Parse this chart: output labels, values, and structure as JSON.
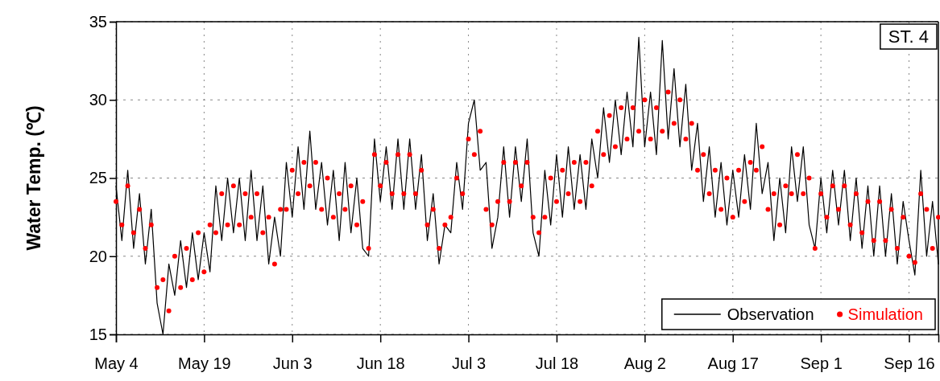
{
  "chart_data": {
    "type": "line",
    "ylabel": "Water Temp. (℃)",
    "annotations": [
      "ST. 4"
    ],
    "x": [
      "--05-04",
      "--05-05",
      "--05-06",
      "--05-07",
      "--05-08",
      "--05-09",
      "--05-10",
      "--05-11",
      "--05-12",
      "--05-13",
      "--05-14",
      "--05-15",
      "--05-16",
      "--05-17",
      "--05-18",
      "--05-19",
      "--05-20",
      "--05-21",
      "--05-22",
      "--05-23",
      "--05-24",
      "--05-25",
      "--05-26",
      "--05-27",
      "--05-28",
      "--05-29",
      "--05-30",
      "--05-31",
      "--06-01",
      "--06-02",
      "--06-03",
      "--06-04",
      "--06-05",
      "--06-06",
      "--06-07",
      "--06-08",
      "--06-09",
      "--06-10",
      "--06-11",
      "--06-12",
      "--06-13",
      "--06-14",
      "--06-15",
      "--06-16",
      "--06-17",
      "--06-18",
      "--06-19",
      "--06-20",
      "--06-21",
      "--06-22",
      "--06-23",
      "--06-24",
      "--06-25",
      "--06-26",
      "--06-27",
      "--06-28",
      "--06-29",
      "--06-30",
      "--07-01",
      "--07-02",
      "--07-03",
      "--07-04",
      "--07-05",
      "--07-06",
      "--07-07",
      "--07-08",
      "--07-09",
      "--07-10",
      "--07-11",
      "--07-12",
      "--07-13",
      "--07-14",
      "--07-15",
      "--07-16",
      "--07-17",
      "--07-18",
      "--07-19",
      "--07-20",
      "--07-21",
      "--07-22",
      "--07-23",
      "--07-24",
      "--07-25",
      "--07-26",
      "--07-27",
      "--07-28",
      "--07-29",
      "--07-30",
      "--07-31",
      "--08-01",
      "--08-02",
      "--08-03",
      "--08-04",
      "--08-05",
      "--08-06",
      "--08-07",
      "--08-08",
      "--08-09",
      "--08-10",
      "--08-11",
      "--08-12",
      "--08-13",
      "--08-14",
      "--08-15",
      "--08-16",
      "--08-17",
      "--08-18",
      "--08-19",
      "--08-20",
      "--08-21",
      "--08-22",
      "--08-23",
      "--08-24",
      "--08-25",
      "--08-26",
      "--08-27",
      "--08-28",
      "--08-29",
      "--08-30",
      "--08-31",
      "--09-01",
      "--09-02",
      "--09-03",
      "--09-04",
      "--09-05",
      "--09-06",
      "--09-07",
      "--09-08",
      "--09-09",
      "--09-10",
      "--09-11",
      "--09-12",
      "--09-13",
      "--09-14",
      "--09-15",
      "--09-16",
      "--09-17",
      "--09-18",
      "--09-19",
      "--09-20",
      "--09-21"
    ],
    "xlim": [
      "--05-04",
      "--09-21"
    ],
    "xticks": [
      {
        "value": "--05-04",
        "label": "May 4"
      },
      {
        "value": "--05-19",
        "label": "May 19"
      },
      {
        "value": "--06-03",
        "label": "Jun 3"
      },
      {
        "value": "--06-18",
        "label": "Jun 18"
      },
      {
        "value": "--07-03",
        "label": "Jul 3"
      },
      {
        "value": "--07-18",
        "label": "Jul 18"
      },
      {
        "value": "--08-02",
        "label": "Aug 2"
      },
      {
        "value": "--08-17",
        "label": "Aug 17"
      },
      {
        "value": "--09-01",
        "label": "Sep 1"
      },
      {
        "value": "--09-16",
        "label": "Sep 16"
      }
    ],
    "ylim": [
      15,
      35
    ],
    "yticks": [
      15,
      20,
      25,
      30,
      35
    ],
    "grid": true,
    "legend": "bottom right",
    "series": [
      {
        "name": "Observation",
        "type": "line",
        "color": "#000000",
        "marker": "none",
        "line_style": "solid",
        "values": [
          24.5,
          21,
          25.5,
          20.5,
          24,
          19.5,
          23,
          17,
          15,
          19.5,
          17.5,
          21,
          18,
          21.5,
          18.5,
          21.5,
          19,
          24.5,
          21,
          25,
          21.5,
          25,
          21,
          25.5,
          21,
          24.5,
          19.5,
          22.5,
          20,
          26,
          22.5,
          27,
          23,
          28,
          23,
          26,
          22,
          25.5,
          21,
          26,
          21.5,
          25,
          20.5,
          20,
          27.5,
          23.5,
          27,
          23,
          27.5,
          23,
          27.5,
          23,
          26.5,
          21,
          24,
          19.5,
          22,
          21.5,
          26,
          23,
          28.5,
          30,
          25.5,
          26,
          20.5,
          22.5,
          27,
          22.5,
          27,
          23.5,
          27.5,
          21.5,
          20,
          25.5,
          22,
          26.5,
          22.5,
          27,
          23,
          26.5,
          23,
          27.5,
          25,
          29.5,
          26,
          30,
          26.5,
          30.5,
          27,
          34,
          27,
          30.5,
          26.5,
          33.8,
          27.5,
          32,
          27,
          31,
          25.5,
          28.5,
          23.5,
          27,
          22.5,
          26,
          22,
          25.5,
          22.5,
          26.5,
          23,
          28.5,
          24,
          26,
          21,
          25,
          21.5,
          27,
          23.5,
          27,
          22,
          20.5,
          25,
          21.5,
          25.5,
          22,
          25.5,
          21,
          25,
          20.5,
          24.5,
          20,
          24.5,
          20,
          24,
          19.5,
          23.5,
          21,
          18.8,
          25.5,
          20,
          23.5,
          19.5
        ]
      },
      {
        "name": "Simulation",
        "type": "scatter",
        "color": "#ff0000",
        "marker": "circle",
        "values": [
          23.5,
          22,
          24.5,
          21.5,
          23,
          20.5,
          22,
          18,
          18.5,
          16.5,
          20,
          18,
          20.5,
          18.5,
          21.5,
          19,
          22,
          21.5,
          24,
          22,
          24.5,
          22,
          24,
          22.5,
          24,
          21.5,
          22.5,
          19.5,
          23,
          23,
          25.5,
          24,
          26,
          24.5,
          26,
          23,
          25,
          22.5,
          24,
          23,
          24.5,
          22,
          23.5,
          20.5,
          26.5,
          24.5,
          26,
          24,
          26.5,
          24,
          26.5,
          24,
          25.5,
          22,
          23,
          20.5,
          22,
          22.5,
          25,
          24,
          27.5,
          26.5,
          28,
          23,
          22,
          23.5,
          26,
          23.5,
          26,
          24.5,
          26,
          22.5,
          21.5,
          22.5,
          25,
          23.5,
          25.5,
          24,
          26,
          23.5,
          26,
          24.5,
          28,
          26.5,
          29,
          27,
          29.5,
          27.5,
          29.5,
          28,
          30,
          27.5,
          29.5,
          28,
          30.5,
          28.5,
          30,
          27.5,
          28.5,
          25.5,
          26.5,
          24,
          25.5,
          23,
          25,
          22.5,
          25.5,
          23.5,
          26,
          25.5,
          27,
          23,
          24,
          22,
          24.5,
          24,
          26.5,
          24,
          25,
          20.5,
          24,
          22.5,
          24.5,
          23,
          24.5,
          22,
          24,
          21.5,
          23.5,
          21,
          23.5,
          21,
          23,
          20.5,
          22.5,
          20,
          19.6,
          24,
          23,
          20.5,
          22.5
        ]
      }
    ]
  }
}
